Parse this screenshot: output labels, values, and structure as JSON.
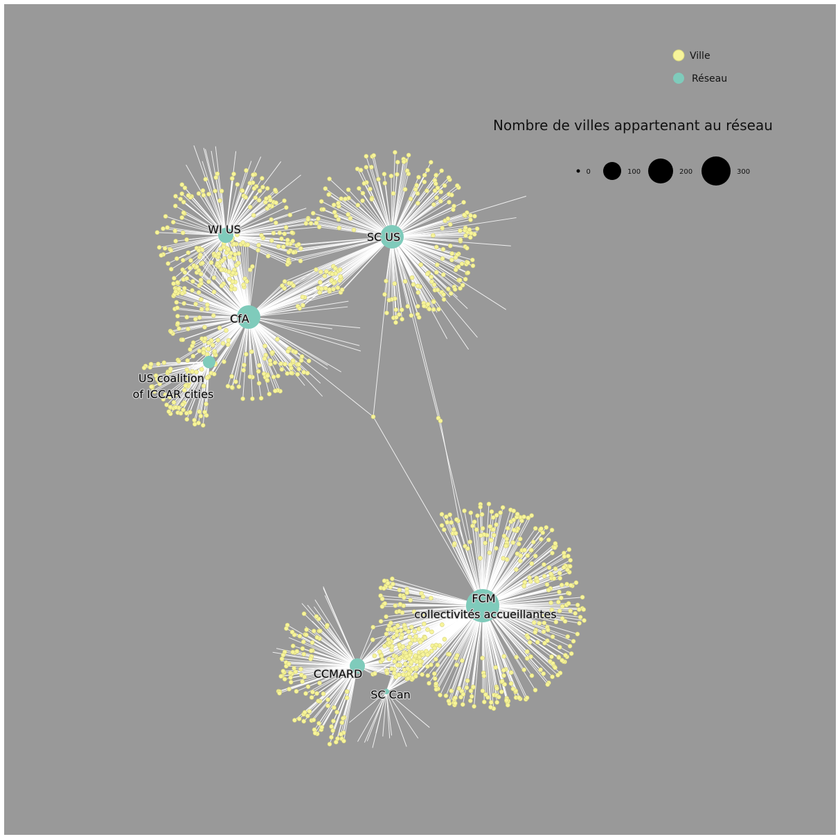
{
  "legend": {
    "ville_label": "Ville",
    "reseau_label": "Réseau",
    "ville_color": "#f7f49a",
    "reseau_color": "#7fcbbb",
    "size_title": "Nombre de villes appartenant au réseau",
    "size_breaks": [
      "0",
      "100",
      "200",
      "300"
    ],
    "size_values": [
      0,
      100,
      200,
      300
    ]
  },
  "networks": [
    {
      "id": "wi_us",
      "label": [
        "WI US"
      ]
    },
    {
      "id": "sc_us",
      "label": [
        "SC US"
      ]
    },
    {
      "id": "cfa",
      "label": [
        "CfA"
      ]
    },
    {
      "id": "iccar",
      "label": [
        "US coalition",
        "of ICCAR cities"
      ]
    },
    {
      "id": "fcm",
      "label": [
        "FCM",
        "collectivités accueillantes"
      ]
    },
    {
      "id": "ccmard",
      "label": [
        "CCMARD"
      ]
    },
    {
      "id": "sc_can",
      "label": [
        "SC Can"
      ]
    }
  ],
  "colors": {
    "background": "#999999",
    "edge": "#ffffff"
  }
}
